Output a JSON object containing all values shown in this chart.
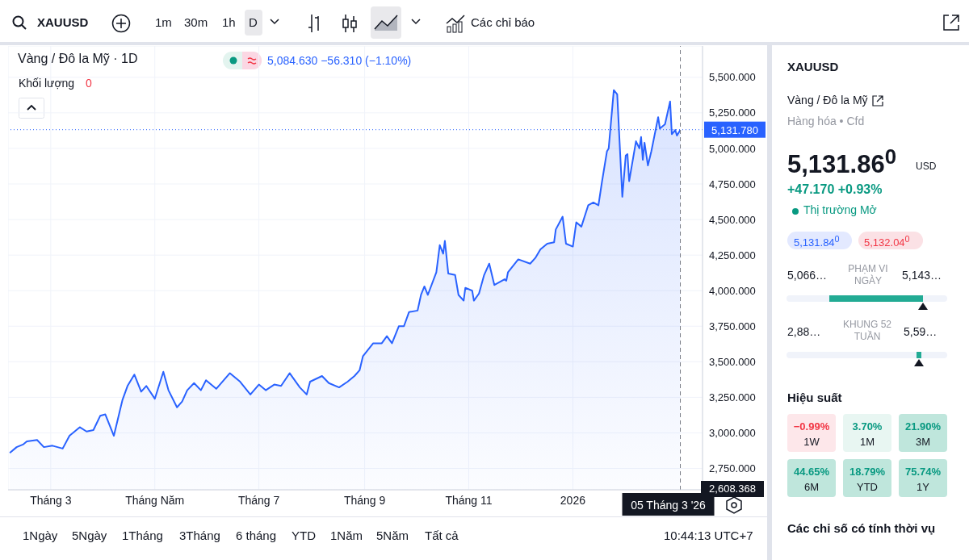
{
  "chart_data": {
    "type": "area",
    "title": "Vàng / Đô la Mỹ · 1D",
    "x": [
      "2025-02-05",
      "2025-02-09",
      "2025-02-13",
      "2025-02-15",
      "2025-02-21",
      "2025-02-25",
      "2025-03-02",
      "2025-03-08",
      "2025-03-12",
      "2025-03-18",
      "2025-03-22",
      "2025-03-26",
      "2025-03-30",
      "2025-04-02",
      "2025-04-07",
      "2025-04-12",
      "2025-04-15",
      "2025-04-19",
      "2025-04-23",
      "2025-04-26",
      "2025-05-01",
      "2025-05-06",
      "2025-05-09",
      "2025-05-14",
      "2025-05-17",
      "2025-05-20",
      "2025-05-24",
      "2025-05-28",
      "2025-05-31",
      "2025-06-06",
      "2025-06-14",
      "2025-06-20",
      "2025-06-26",
      "2025-07-01",
      "2025-07-05",
      "2025-07-10",
      "2025-07-14",
      "2025-07-19",
      "2025-07-25",
      "2025-07-29",
      "2025-07-31",
      "2025-08-07",
      "2025-08-11",
      "2025-08-17",
      "2025-08-22",
      "2025-08-26",
      "2025-08-29",
      "2025-08-31",
      "2025-09-06",
      "2025-09-11",
      "2025-09-14",
      "2025-09-17",
      "2025-09-21",
      "2025-09-24",
      "2025-09-27",
      "2025-10-02",
      "2025-10-04",
      "2025-10-06",
      "2025-10-08",
      "2025-10-13",
      "2025-10-15",
      "2025-10-17",
      "2025-10-18",
      "2025-10-20",
      "2025-10-24",
      "2025-10-26",
      "2025-10-29",
      "2025-10-30",
      "2025-11-03",
      "2025-11-04",
      "2025-11-07",
      "2025-11-10",
      "2025-11-13",
      "2025-11-16",
      "2025-11-22",
      "2025-11-23",
      "2025-11-24",
      "2025-11-30",
      "2025-12-07",
      "2025-12-10",
      "2025-12-13",
      "2025-12-17",
      "2025-12-21",
      "2025-12-22",
      "2025-12-26",
      "2025-12-28",
      "2026-01-01",
      "2026-01-03",
      "2026-01-06",
      "2026-01-10",
      "2026-01-13",
      "2026-01-16",
      "2026-01-18",
      "2026-01-21",
      "2026-01-22",
      "2026-01-25",
      "2026-01-27",
      "2026-01-30",
      "2026-02-01",
      "2026-02-02",
      "2026-02-03",
      "2026-02-07",
      "2026-02-09",
      "2026-02-10",
      "2026-02-11",
      "2026-02-12",
      "2026-02-14",
      "2026-02-16",
      "2026-02-20",
      "2026-02-21",
      "2026-02-24",
      "2026-02-27",
      "2026-02-28",
      "2026-03-02",
      "2026-03-03",
      "2026-03-05"
    ],
    "series": [
      {
        "color": "#2962ff",
        "values": [
          2860,
          2900,
          2920,
          2940,
          2950,
          2900,
          2910,
          2890,
          2980,
          3040,
          3010,
          3020,
          3120,
          3130,
          2980,
          3230,
          3330,
          3410,
          3290,
          3330,
          3240,
          3430,
          3300,
          3180,
          3220,
          3300,
          3350,
          3300,
          3370,
          3310,
          3420,
          3360,
          3270,
          3340,
          3300,
          3340,
          3330,
          3420,
          3320,
          3270,
          3360,
          3400,
          3350,
          3320,
          3360,
          3400,
          3440,
          3540,
          3630,
          3630,
          3680,
          3630,
          3750,
          3750,
          3850,
          3860,
          3970,
          4030,
          3970,
          4130,
          4320,
          4260,
          4350,
          4120,
          4110,
          3970,
          3930,
          4020,
          4000,
          3930,
          3980,
          4110,
          4190,
          4040,
          4080,
          4070,
          4130,
          4220,
          4190,
          4230,
          4290,
          4330,
          4340,
          4430,
          4520,
          4330,
          4310,
          4480,
          4450,
          4600,
          4620,
          4600,
          4760,
          4980,
          5000,
          5410,
          5380,
          4660,
          4950,
          4960,
          4770,
          5050,
          5000,
          5080,
          4920,
          5040,
          4880,
          4980,
          5220,
          5140,
          5170,
          5330,
          5100,
          5130,
          5090,
          5130
        ]
      }
    ],
    "xlim": [
      "2025-02-04",
      "2026-03-18"
    ],
    "xticks": [
      {
        "value": "2025-03-01",
        "label": "Tháng 3"
      },
      {
        "value": "2025-05-01",
        "label": "Tháng Năm"
      },
      {
        "value": "2025-07-01",
        "label": "Tháng 7"
      },
      {
        "value": "2025-09-01",
        "label": "Tháng 9"
      },
      {
        "value": "2025-11-01",
        "label": "Tháng 11"
      },
      {
        "value": "2026-01-01",
        "label": "2026"
      }
    ],
    "ylim": [
      2600,
      5720
    ],
    "yticks": [
      {
        "value": 2750,
        "label": "2,750.000"
      },
      {
        "value": 3000,
        "label": "3,000.000"
      },
      {
        "value": 3250,
        "label": "3,250.000"
      },
      {
        "value": 3500,
        "label": "3,500.000"
      },
      {
        "value": 3750,
        "label": "3,750.000"
      },
      {
        "value": 4000,
        "label": "4,000.000"
      },
      {
        "value": 4250,
        "label": "4,250.000"
      },
      {
        "value": 4500,
        "label": "4,500.000"
      },
      {
        "value": 4750,
        "label": "4,750.000"
      },
      {
        "value": 5000,
        "label": "5,000.000"
      },
      {
        "value": 5250,
        "label": "5,250.000"
      },
      {
        "value": 5500,
        "label": "5,500.000"
      }
    ],
    "grid": true,
    "ref_lines": [
      {
        "axis": "y",
        "value": 5131.78,
        "label": "5,131.780",
        "color": "#2962ff",
        "line_style": "dotted"
      },
      {
        "axis": "x",
        "value": "2026-03-05",
        "label": "05 Tháng 3 '26",
        "color": "#787b86",
        "line_style": "dashed"
      }
    ],
    "annotations": [
      "XAUUSD",
      "1m",
      "30m",
      "1h",
      "D",
      "Các chỉ báo",
      "5,084.630 −56.310 (−1.10%)",
      "Khối lượng",
      "0",
      "2,608.368",
      "1Ngày",
      "5Ngày",
      "1Tháng",
      "3Tháng",
      "6 tháng",
      "YTD",
      "1Năm",
      "5Năm",
      "Tất cả",
      "10:44:13 UTC+7",
      "XAUUSD",
      "Vàng / Đô la Mỹ",
      "Hàng hóa • Cfd",
      "5,131.86$^{0}$",
      "USD",
      "+47.170 +0.93%",
      "Thị trường Mở",
      "5,131.84$^{0}$",
      "5,132.04$^{0}$",
      "5,066…",
      "PHẠM VI NGÀY",
      "5,143…",
      "2,88…",
      "KHUNG 52 TUẦN",
      "5,59…",
      "Hiệu suất",
      "−0.99%",
      "1W",
      "3.70%",
      "1M",
      "21.90%",
      "3M",
      "44.65%",
      "6M",
      "18.79%",
      "YTD",
      "75.74%",
      "1Y",
      "Các chỉ số có tính thời vụ"
    ]
  }
}
